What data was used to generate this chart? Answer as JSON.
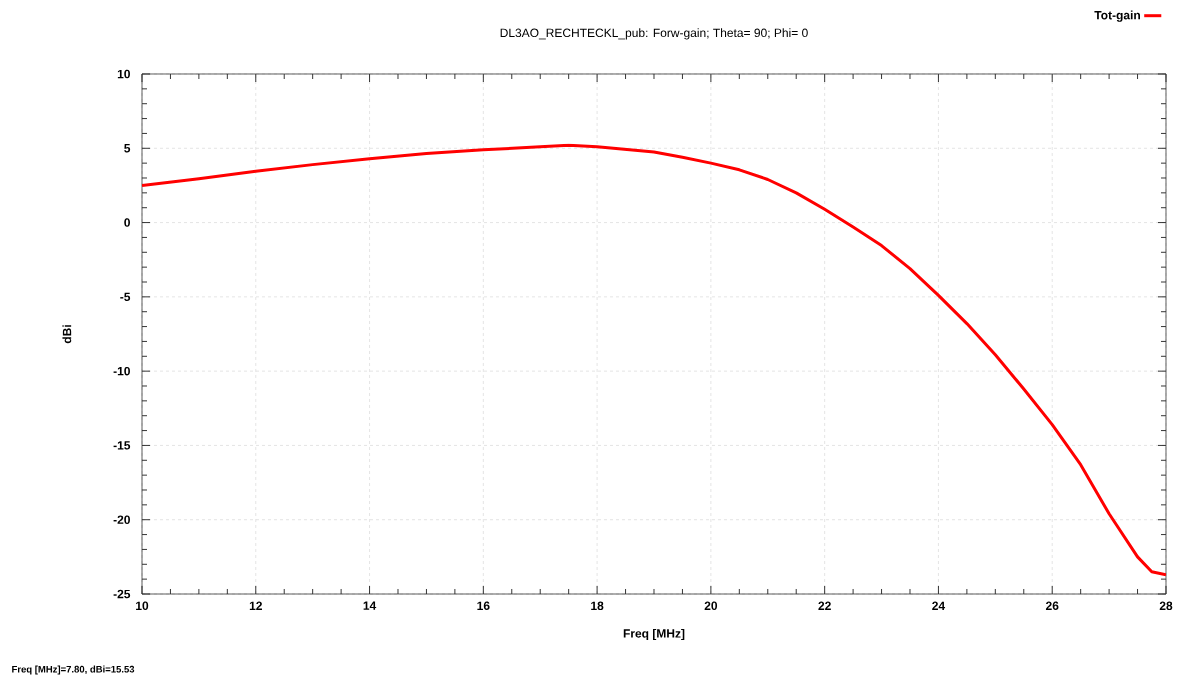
{
  "chart_data": {
    "type": "line",
    "title": "DL3AO_RECHTECKL_pub: Forw-gain; Theta= 90; Phi= 0",
    "xlabel": "Freq [MHz]",
    "ylabel": "dBi",
    "annotations": [
      "Freq [MHz]=7.80, dBi=15.53"
    ],
    "x": [
      10,
      11,
      12,
      13,
      14,
      15,
      16,
      17,
      17.5,
      18,
      19,
      19.5,
      20,
      20.5,
      21,
      21.5,
      22,
      22.5,
      23,
      23.5,
      24,
      24.5,
      25,
      25.5,
      26,
      26.5,
      27,
      27.5,
      27.75,
      28
    ],
    "series": [
      {
        "name": "Tot-gain",
        "color": "#ff0000",
        "values": [
          2.5,
          2.95,
          3.45,
          3.9,
          4.3,
          4.65,
          4.9,
          5.1,
          5.2,
          5.1,
          4.75,
          4.4,
          4.0,
          3.55,
          2.9,
          2.0,
          0.9,
          -0.3,
          -1.55,
          -3.1,
          -4.9,
          -6.8,
          -8.9,
          -11.2,
          -13.6,
          -16.3,
          -19.6,
          -22.5,
          -23.5,
          -23.7
        ]
      }
    ],
    "xlim": [
      10,
      28
    ],
    "ylim": [
      -25,
      10
    ],
    "xticks": [
      10,
      12,
      14,
      16,
      18,
      20,
      22,
      24,
      26,
      28
    ],
    "yticks": [
      -25,
      -20,
      -15,
      -10,
      -5,
      0,
      5,
      10
    ],
    "grid": true,
    "legend": "top right",
    "marker": "none",
    "line_style": "solid"
  }
}
